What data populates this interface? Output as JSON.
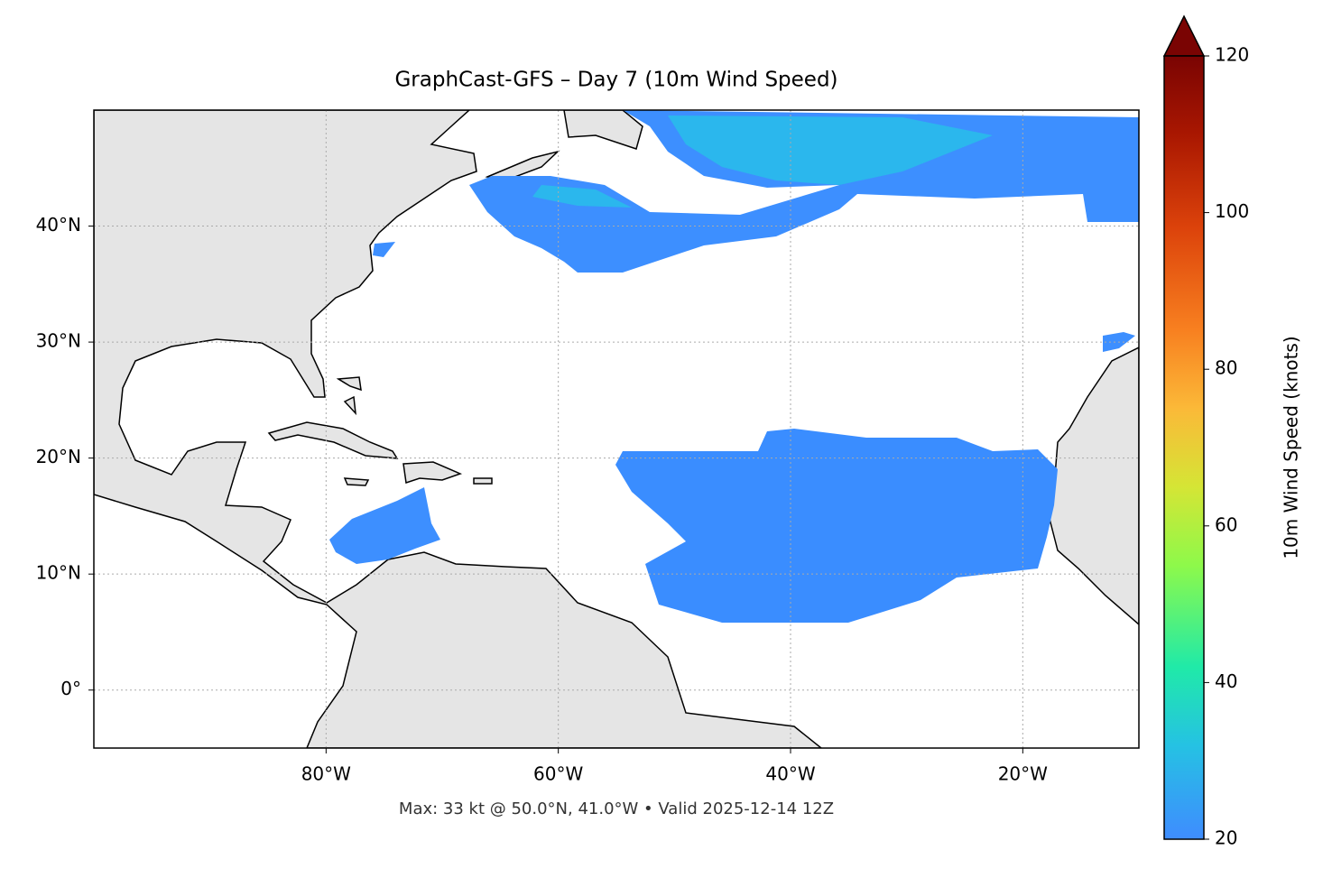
{
  "chart_data": {
    "type": "map",
    "title": "GraphCast-GFS – Day 7 (10m Wind Speed)",
    "footer": "Max: 33 kt @ 50.0°N, 41.0°W • Valid 2025-12-14 12Z",
    "xlim": [
      -100,
      -10
    ],
    "ylim": [
      -5,
      50
    ],
    "xticks": [
      {
        "value": -80,
        "label": "80°W"
      },
      {
        "value": -60,
        "label": "60°W"
      },
      {
        "value": -40,
        "label": "40°W"
      },
      {
        "value": -20,
        "label": "20°W"
      }
    ],
    "yticks": [
      {
        "value": 0,
        "label": "0°"
      },
      {
        "value": 10,
        "label": "10°N"
      },
      {
        "value": 20,
        "label": "20°N"
      },
      {
        "value": 30,
        "label": "30°N"
      },
      {
        "value": 40,
        "label": "40°N"
      }
    ],
    "grid": true,
    "colorbar": {
      "label": "10m Wind Speed (knots)",
      "lim": [
        20,
        120
      ],
      "ticks": [
        20,
        40,
        60,
        80,
        100,
        120
      ]
    }
  }
}
